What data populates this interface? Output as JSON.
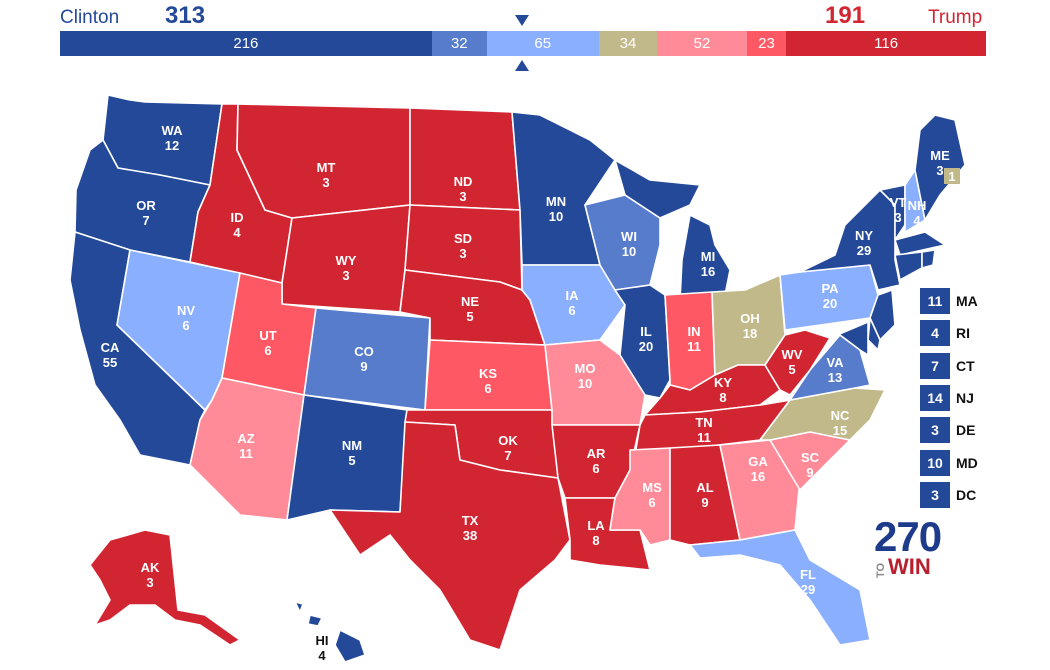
{
  "header": {
    "dem_name": "Clinton",
    "dem_total": "313",
    "rep_name": "Trump",
    "rep_total": "191"
  },
  "bar_segments": [
    {
      "value": "216",
      "color": "#244999"
    },
    {
      "value": "32",
      "color": "#577ccc"
    },
    {
      "value": "65",
      "color": "#8aafff"
    },
    {
      "value": "34",
      "color": "#c2b98a"
    },
    {
      "value": "52",
      "color": "#ff8b98"
    },
    {
      "value": "23",
      "color": "#ff5865"
    },
    {
      "value": "116",
      "color": "#d22532"
    }
  ],
  "colors": {
    "safe_dem": "#244999",
    "likely_dem": "#577ccc",
    "lean_dem": "#8aafff",
    "tossup": "#c2b98a",
    "lean_rep": "#ff8b98",
    "likely_rep": "#ff5865",
    "safe_rep": "#d22532"
  },
  "states": {
    "WA": {
      "abbr": "WA",
      "ev": "12"
    },
    "OR": {
      "abbr": "OR",
      "ev": "7"
    },
    "CA": {
      "abbr": "CA",
      "ev": "55"
    },
    "ID": {
      "abbr": "ID",
      "ev": "4"
    },
    "NV": {
      "abbr": "NV",
      "ev": "6"
    },
    "MT": {
      "abbr": "MT",
      "ev": "3"
    },
    "WY": {
      "abbr": "WY",
      "ev": "3"
    },
    "UT": {
      "abbr": "UT",
      "ev": "6"
    },
    "AZ": {
      "abbr": "AZ",
      "ev": "11"
    },
    "CO": {
      "abbr": "CO",
      "ev": "9"
    },
    "NM": {
      "abbr": "NM",
      "ev": "5"
    },
    "ND": {
      "abbr": "ND",
      "ev": "3"
    },
    "SD": {
      "abbr": "SD",
      "ev": "3"
    },
    "NE": {
      "abbr": "NE",
      "ev": "5"
    },
    "KS": {
      "abbr": "KS",
      "ev": "6"
    },
    "OK": {
      "abbr": "OK",
      "ev": "7"
    },
    "TX": {
      "abbr": "TX",
      "ev": "38"
    },
    "MN": {
      "abbr": "MN",
      "ev": "10"
    },
    "IA": {
      "abbr": "IA",
      "ev": "6"
    },
    "MO": {
      "abbr": "MO",
      "ev": "10"
    },
    "AR": {
      "abbr": "AR",
      "ev": "6"
    },
    "LA": {
      "abbr": "LA",
      "ev": "8"
    },
    "WI": {
      "abbr": "WI",
      "ev": "10"
    },
    "IL": {
      "abbr": "IL",
      "ev": "20"
    },
    "MI": {
      "abbr": "MI",
      "ev": "16"
    },
    "IN": {
      "abbr": "IN",
      "ev": "11"
    },
    "OH": {
      "abbr": "OH",
      "ev": "18"
    },
    "KY": {
      "abbr": "KY",
      "ev": "8"
    },
    "TN": {
      "abbr": "TN",
      "ev": "11"
    },
    "MS": {
      "abbr": "MS",
      "ev": "6"
    },
    "AL": {
      "abbr": "AL",
      "ev": "9"
    },
    "GA": {
      "abbr": "GA",
      "ev": "16"
    },
    "FL": {
      "abbr": "FL",
      "ev": "29"
    },
    "SC": {
      "abbr": "SC",
      "ev": "9"
    },
    "NC": {
      "abbr": "NC",
      "ev": "15"
    },
    "VA": {
      "abbr": "VA",
      "ev": "13"
    },
    "WV": {
      "abbr": "WV",
      "ev": "5"
    },
    "PA": {
      "abbr": "PA",
      "ev": "20"
    },
    "NY": {
      "abbr": "NY",
      "ev": "29"
    },
    "VT": {
      "abbr": "VT",
      "ev": "3"
    },
    "NH": {
      "abbr": "NH",
      "ev": "4"
    },
    "ME": {
      "abbr": "ME",
      "ev": "3"
    },
    "ME2": {
      "ev": "1"
    },
    "AK": {
      "abbr": "AK",
      "ev": "3"
    },
    "HI": {
      "abbr": "HI",
      "ev": "4"
    }
  },
  "small_states": [
    {
      "abbr": "MA",
      "ev": "11"
    },
    {
      "abbr": "RI",
      "ev": "4"
    },
    {
      "abbr": "CT",
      "ev": "7"
    },
    {
      "abbr": "NJ",
      "ev": "14"
    },
    {
      "abbr": "DE",
      "ev": "3"
    },
    {
      "abbr": "MD",
      "ev": "10"
    },
    {
      "abbr": "DC",
      "ev": "3"
    }
  ],
  "logo": {
    "number": "270",
    "to": "TO",
    "word": "WIN"
  }
}
